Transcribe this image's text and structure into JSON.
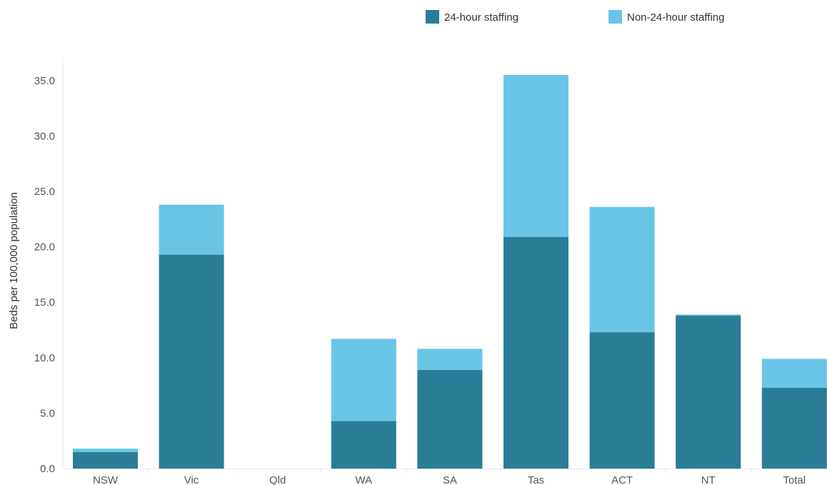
{
  "chart_data": {
    "type": "bar",
    "stacked": true,
    "categories": [
      "NSW",
      "Vic",
      "Qld",
      "WA",
      "SA",
      "Tas",
      "ACT",
      "NT",
      "Total"
    ],
    "series": [
      {
        "name": "24-hour staffing",
        "color": "#2a7d96",
        "values": [
          1.5,
          19.3,
          0,
          4.3,
          8.9,
          20.9,
          12.3,
          13.8,
          7.3
        ]
      },
      {
        "name": "Non-24-hour staffing",
        "color": "#69c5e6",
        "values": [
          0.3,
          4.5,
          0,
          7.4,
          1.9,
          14.6,
          11.3,
          0.1,
          2.6
        ]
      }
    ],
    "title": "",
    "xlabel": "",
    "ylabel": "Beds per 100,000 population",
    "ylim": [
      0,
      36.5
    ],
    "yticks": [
      "0.0",
      "5.0",
      "10.0",
      "15.0",
      "20.0",
      "25.0",
      "30.0",
      "35.0"
    ],
    "grid": false,
    "legend_position": "top"
  }
}
